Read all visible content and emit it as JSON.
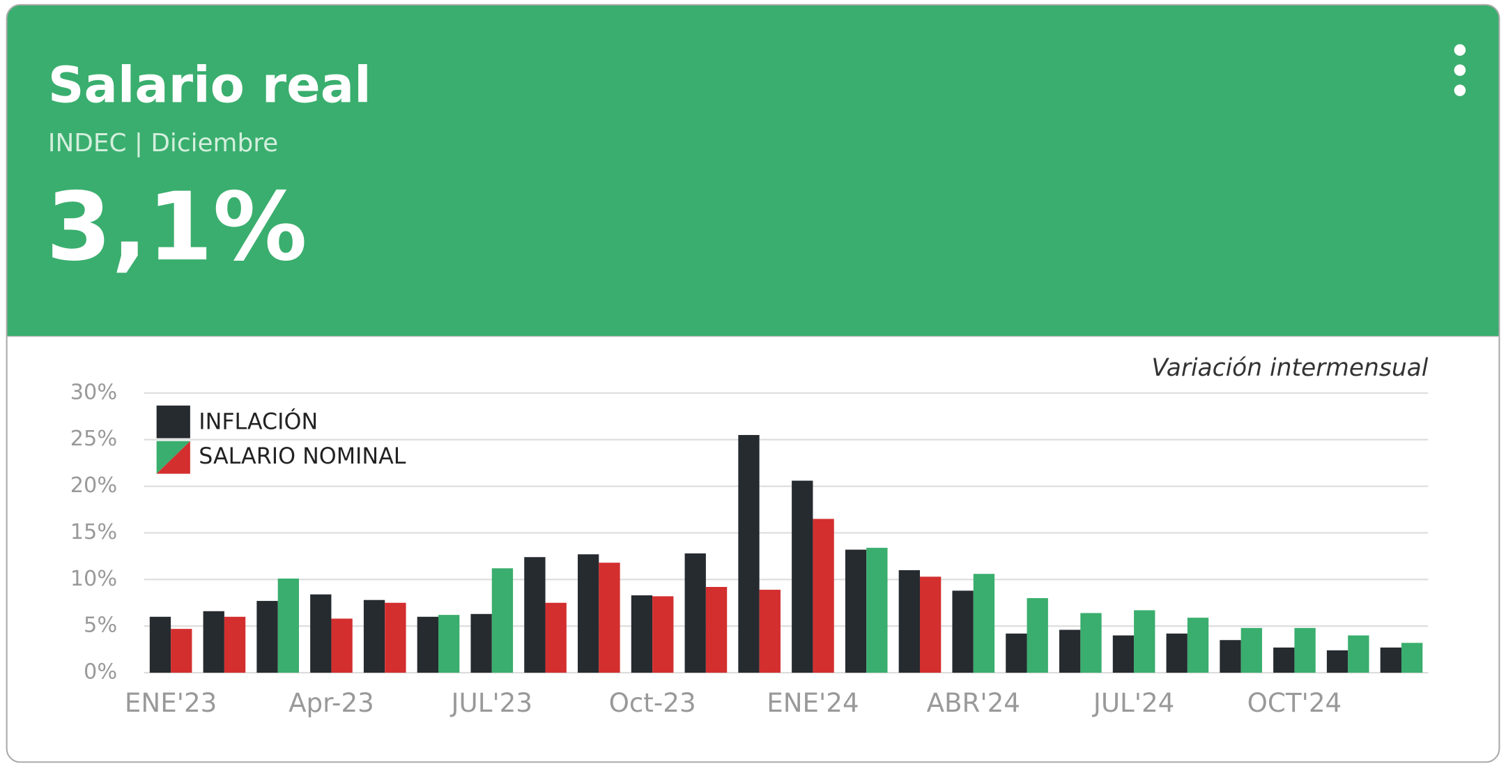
{
  "header": {
    "title": "Salario real",
    "subtitle": "INDEC | Diciembre",
    "value": "3,1%"
  },
  "chart_data": {
    "type": "bar",
    "annotation": "Variación intermensual",
    "categories": [
      "ENE'23",
      null,
      null,
      "Apr-23",
      null,
      null,
      "JUL'23",
      null,
      null,
      "Oct-23",
      null,
      null,
      "ENE'24",
      null,
      null,
      "ABR'24",
      null,
      null,
      "JUL'24",
      null,
      null,
      "OCT'24",
      null,
      null
    ],
    "series": [
      {
        "name": "INFLACIÓN",
        "color": "#262b30",
        "values": [
          6.0,
          6.6,
          7.7,
          8.4,
          7.8,
          6.0,
          6.3,
          12.4,
          12.7,
          8.3,
          12.8,
          25.5,
          20.6,
          13.2,
          11.0,
          8.8,
          4.2,
          4.6,
          4.0,
          4.2,
          3.5,
          2.7,
          2.4,
          2.7
        ]
      },
      {
        "name": "SALARIO NOMINAL",
        "color": "#3aae6e",
        "color_below": "#d32f2f",
        "values": [
          4.7,
          6.0,
          10.1,
          5.8,
          7.5,
          6.2,
          11.2,
          7.5,
          11.8,
          8.2,
          9.2,
          8.9,
          16.5,
          13.4,
          10.3,
          10.6,
          8.0,
          6.4,
          6.7,
          5.9,
          4.8,
          4.8,
          4.0,
          3.2
        ]
      }
    ],
    "ylim": [
      0,
      30
    ],
    "yticks": [
      {
        "value": 0,
        "label": "0%"
      },
      {
        "value": 5,
        "label": "5%"
      },
      {
        "value": 10,
        "label": "10%"
      },
      {
        "value": 15,
        "label": "15%"
      },
      {
        "value": 20,
        "label": "20%"
      },
      {
        "value": 25,
        "label": "25%"
      },
      {
        "value": 30,
        "label": "30%"
      }
    ],
    "grid": true,
    "legend": "top-left"
  }
}
